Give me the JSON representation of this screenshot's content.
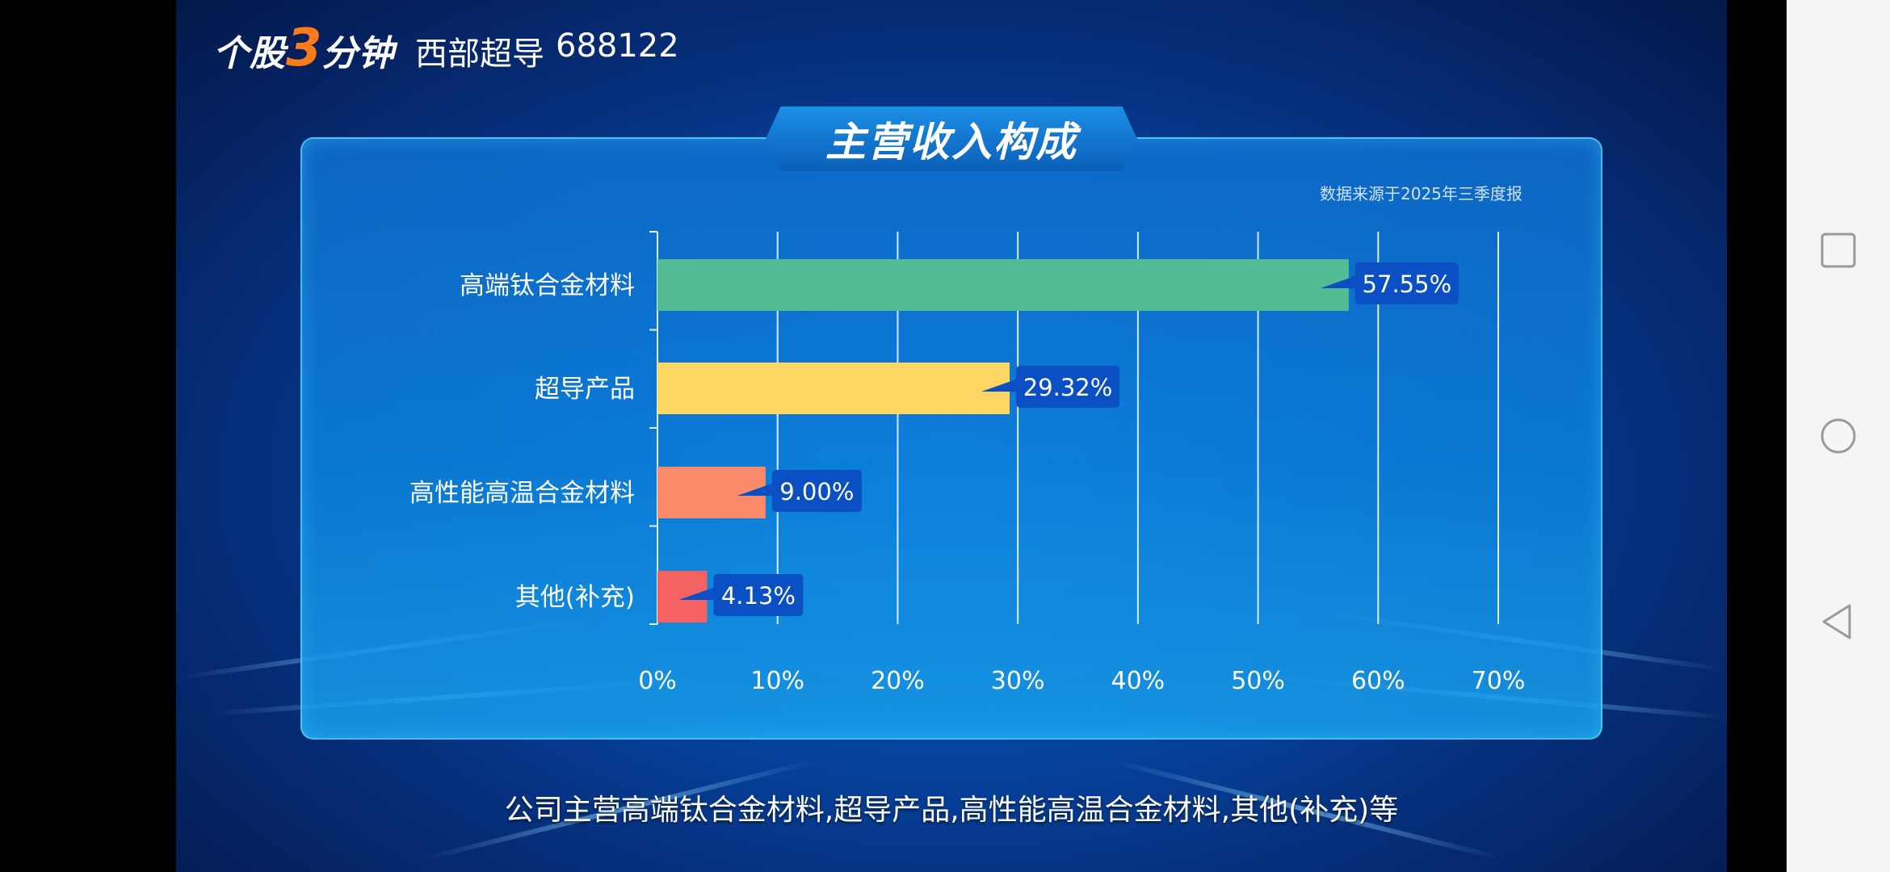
{
  "brand": {
    "prefix": "个股",
    "number": "3",
    "suffix": "分钟"
  },
  "stock": {
    "name": "西部超导",
    "code": "688122"
  },
  "panel": {
    "title": "主营收入构成",
    "source": "数据来源于2025年三季度报"
  },
  "subtitle": "公司主营高端钛合金材料,超导产品,高性能高温合金材料,其他(补充)等",
  "nav": {
    "recent_icon": "square-icon",
    "home_icon": "circle-icon",
    "back_icon": "triangle-back-icon"
  },
  "colors": {
    "bar1": "#52bd94",
    "bar2": "#fdd563",
    "bar3": "#fb8a6a",
    "bar4": "#f46262",
    "label_bg": "#0b4fc4",
    "accent": "#ff7a1a"
  },
  "chart_data": {
    "type": "bar",
    "orientation": "horizontal",
    "categories": [
      "高端钛合金材料",
      "超导产品",
      "高性能高温合金材料",
      "其他(补充)"
    ],
    "values": [
      57.55,
      29.32,
      9.0,
      4.13
    ],
    "value_labels": [
      "57.55%",
      "29.32%",
      "9.00%",
      "4.13%"
    ],
    "xticks": [
      "0%",
      "10%",
      "20%",
      "30%",
      "40%",
      "50%",
      "60%",
      "70%"
    ],
    "xlim": [
      0,
      70
    ],
    "grid": true
  }
}
